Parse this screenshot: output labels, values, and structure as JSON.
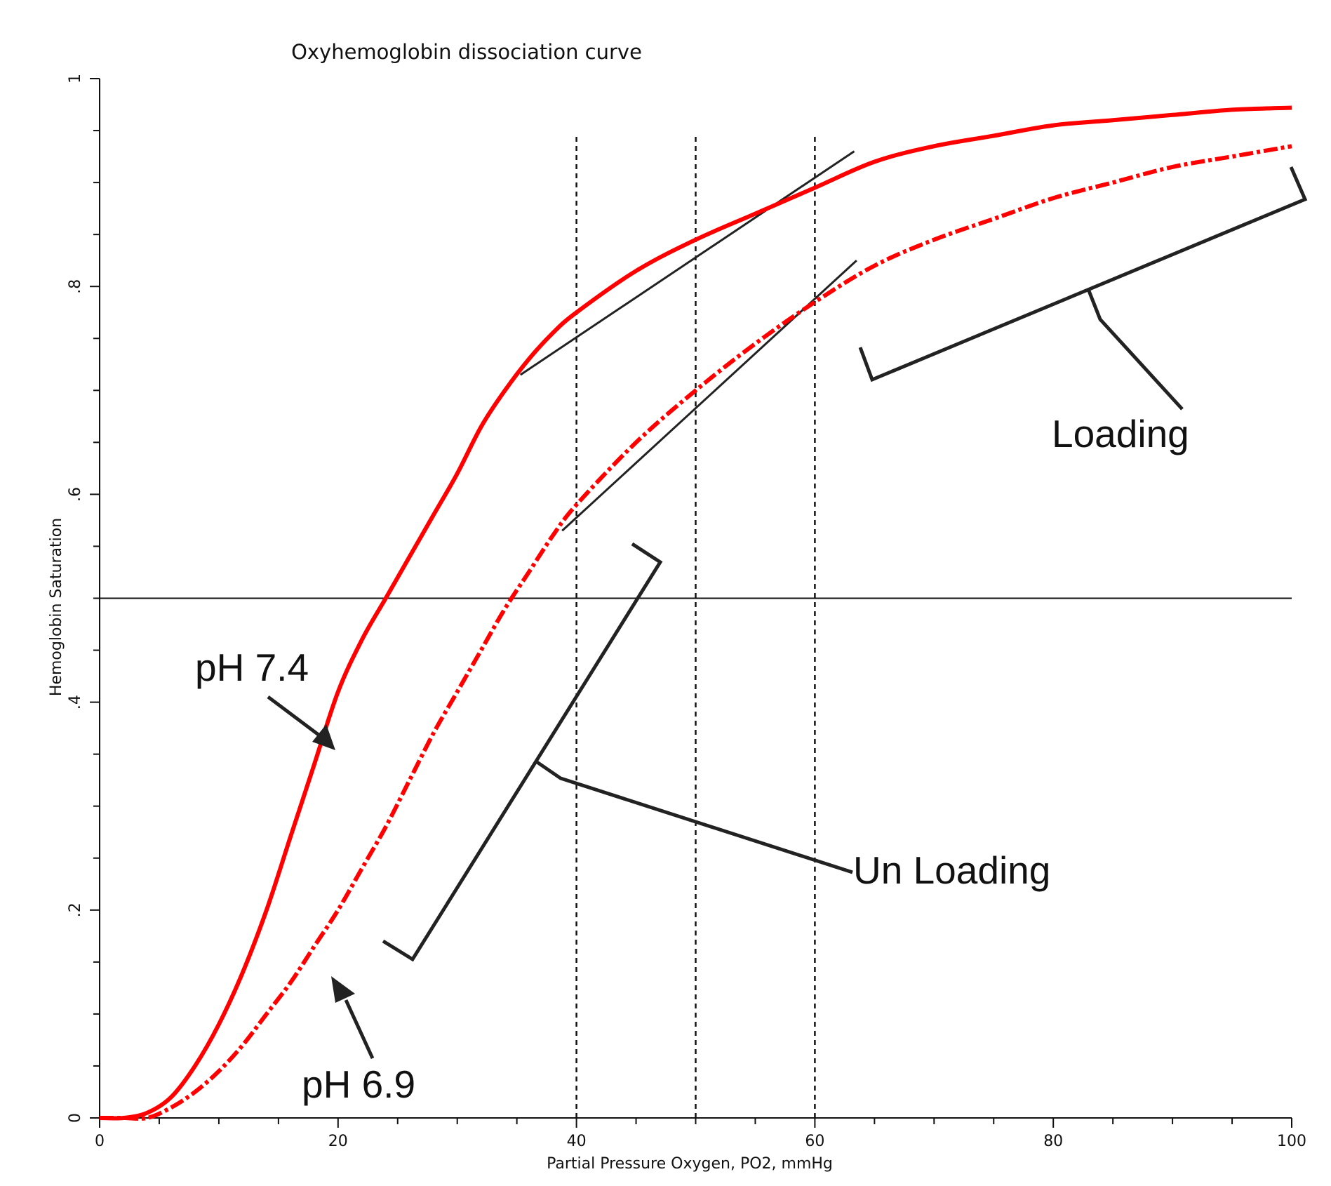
{
  "chart_data": {
    "type": "line",
    "title": "Oxyhemoglobin dissociation curve",
    "xlabel": "Partial Pressure Oxygen, PO2, mmHg",
    "ylabel": "Hemoglobin Saturation",
    "xlim": [
      0,
      100
    ],
    "ylim": [
      0,
      1
    ],
    "x_ticks": [
      0,
      20,
      40,
      60,
      80,
      100
    ],
    "x_tick_labels": [
      "0",
      "20",
      "40",
      "60",
      "80",
      "100"
    ],
    "y_ticks": [
      0,
      0.2,
      0.4,
      0.6,
      0.8,
      1
    ],
    "y_tick_labels": [
      "0",
      ".2",
      ".4",
      ".6",
      ".8",
      "1"
    ],
    "grid": false,
    "series": [
      {
        "name": "pH 7.4",
        "style": "solid",
        "color": "#ff0000",
        "x": [
          0,
          2,
          4,
          6,
          8,
          10,
          12,
          14,
          16,
          18,
          20,
          22,
          24,
          26,
          28,
          30,
          32,
          34,
          36,
          38,
          40,
          45,
          50,
          55,
          60,
          65,
          70,
          75,
          80,
          85,
          90,
          95,
          100
        ],
        "y": [
          0,
          0,
          0.005,
          0.02,
          0.05,
          0.09,
          0.14,
          0.2,
          0.27,
          0.34,
          0.41,
          0.46,
          0.5,
          0.54,
          0.58,
          0.62,
          0.665,
          0.7,
          0.73,
          0.755,
          0.775,
          0.815,
          0.845,
          0.87,
          0.895,
          0.92,
          0.935,
          0.945,
          0.955,
          0.96,
          0.965,
          0.97,
          0.972
        ]
      },
      {
        "name": "pH 6.9",
        "style": "dash-dot",
        "color": "#ff0000",
        "x": [
          0,
          2,
          4,
          6,
          8,
          10,
          12,
          14,
          16,
          18,
          20,
          22,
          24,
          26,
          28,
          30,
          32,
          34,
          36,
          38,
          40,
          45,
          50,
          55,
          60,
          65,
          70,
          75,
          80,
          85,
          90,
          95,
          100
        ],
        "y": [
          0,
          0,
          0,
          0.01,
          0.025,
          0.045,
          0.07,
          0.1,
          0.13,
          0.165,
          0.2,
          0.24,
          0.28,
          0.325,
          0.37,
          0.41,
          0.45,
          0.49,
          0.525,
          0.56,
          0.59,
          0.65,
          0.7,
          0.745,
          0.785,
          0.82,
          0.845,
          0.865,
          0.885,
          0.9,
          0.915,
          0.925,
          0.935
        ]
      }
    ],
    "reference_lines": {
      "horizontal_y": [
        0.5
      ],
      "vertical_dashed_x": [
        40,
        50,
        60
      ]
    },
    "tangent_lines": [
      {
        "x": [
          35.3,
          63.3
        ],
        "y": [
          0.715,
          0.93
        ]
      },
      {
        "x": [
          38.8,
          63.5
        ],
        "y": [
          0.565,
          0.825
        ]
      }
    ],
    "annotations": {
      "loading": "Loading",
      "unloading": "Un Loading",
      "ph74": "pH 7.4",
      "ph69": "pH 6.9"
    }
  }
}
